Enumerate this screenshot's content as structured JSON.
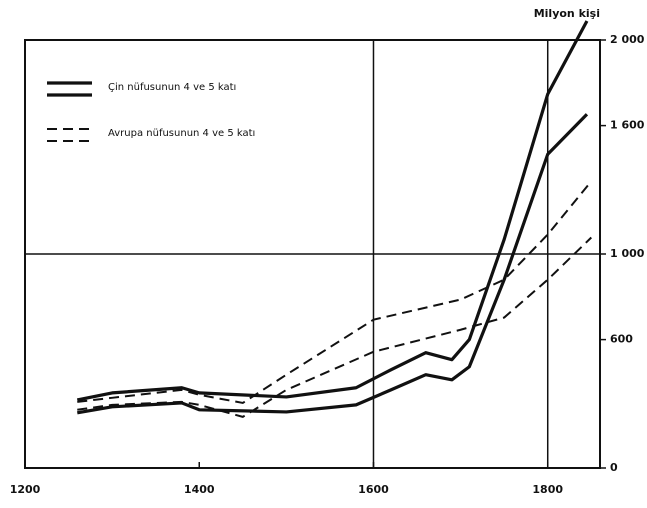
{
  "chart_data": {
    "type": "line",
    "y_axis_label": "Milyon kişi",
    "xlim": [
      1200,
      1860
    ],
    "xticks": [
      1200,
      1400,
      1600,
      1800
    ],
    "ylim": [
      0,
      2000
    ],
    "yticks": [
      0,
      600,
      {
        "value": 1000,
        "label": "1 000"
      },
      {
        "value": 1600,
        "label": "1 600"
      },
      {
        "value": 2000,
        "label": "2 000"
      }
    ],
    "grid_x": [
      1600,
      1800
    ],
    "grid_y": [
      1000
    ],
    "color": "#111111",
    "legend": [
      {
        "label": "Çin nüfusunun 4 ve 5 katı",
        "dashed": false
      },
      {
        "label": "Avrupa nüfusunun 4 ve 5 katı",
        "dashed": true
      }
    ],
    "series": [
      {
        "group": 0,
        "dashed": false,
        "x": [
          1260,
          1300,
          1380,
          1400,
          1500,
          1580,
          1620,
          1660,
          1690,
          1710,
          1750,
          1800,
          1845
        ],
        "values": [
          318,
          351,
          375,
          351,
          332,
          375,
          459,
          539,
          506,
          600,
          1068,
          1747,
          2089
        ]
      },
      {
        "group": 0,
        "dashed": false,
        "x": [
          1260,
          1300,
          1380,
          1400,
          1500,
          1580,
          1620,
          1660,
          1690,
          1710,
          1750,
          1800,
          1845
        ],
        "values": [
          258,
          286,
          304,
          272,
          262,
          295,
          365,
          436,
          412,
          473,
          880,
          1466,
          1653
        ]
      },
      {
        "group": 1,
        "dashed": true,
        "x": [
          1260,
          1300,
          1380,
          1400,
          1450,
          1500,
          1600,
          1700,
          1750,
          1800,
          1850
        ],
        "values": [
          309,
          328,
          365,
          342,
          304,
          436,
          693,
          787,
          880,
          1091,
          1340
        ]
      },
      {
        "group": 1,
        "dashed": true,
        "x": [
          1260,
          1300,
          1380,
          1400,
          1450,
          1500,
          1600,
          1700,
          1750,
          1800,
          1850
        ],
        "values": [
          272,
          295,
          309,
          295,
          239,
          365,
          543,
          646,
          703,
          880,
          1077
        ]
      }
    ]
  }
}
